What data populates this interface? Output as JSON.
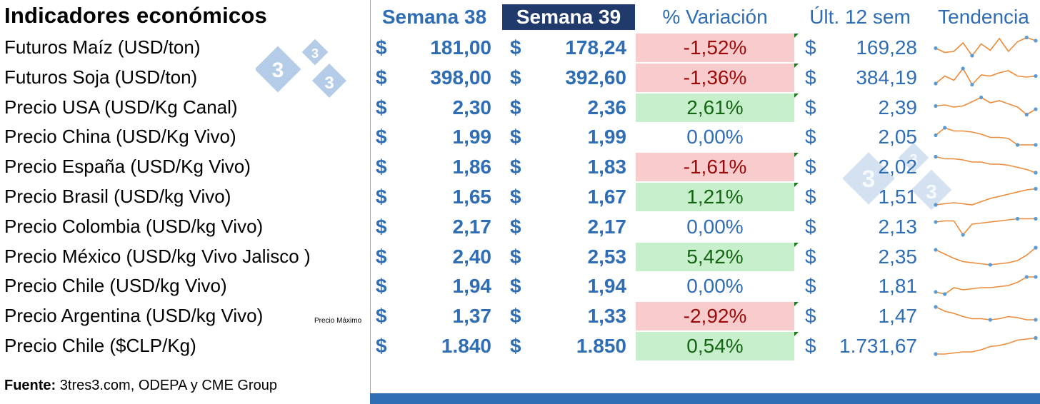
{
  "title": "Indicadores económicos",
  "headers": {
    "semana38": "Semana 38",
    "semana39": "Semana 39",
    "variacion": "% Variación",
    "ultimas12": "Últ. 12 sem",
    "tendencia": "Tendencia"
  },
  "currency_symbol": "$",
  "colors": {
    "blue": "#2f6db5",
    "navy": "#1f3a6b",
    "neg_bg": "#f8cccc",
    "neg_fg": "#9a0a0a",
    "pos_bg": "#c8efcb",
    "pos_fg": "#146614",
    "spark_line": "#ed8b3a",
    "spark_marker": "#5b9bd5"
  },
  "rows": [
    {
      "label": "Futuros Maíz (USD/ton)",
      "s38": "181,00",
      "s39": "178,24",
      "var": "-1,52%",
      "var_sign": "neg",
      "ult12": "169,28",
      "trend": [
        0.45,
        0.25,
        0.3,
        0.7,
        0.1,
        0.65,
        0.35,
        0.9,
        0.3,
        0.75,
        0.95,
        0.8
      ]
    },
    {
      "label": "Futuros Soja (USD/ton)",
      "s38": "398,00",
      "s39": "392,60",
      "var": "-1,36%",
      "var_sign": "neg",
      "ult12": "384,19",
      "trend": [
        0.2,
        0.55,
        0.35,
        0.9,
        0.15,
        0.6,
        0.55,
        0.7,
        0.8,
        0.55,
        0.5,
        0.55
      ]
    },
    {
      "label": "Precio USA (USD/Kg Canal)",
      "s38": "2,30",
      "s39": "2,36",
      "var": "2,61%",
      "var_sign": "pos",
      "ult12": "2,39",
      "trend": [
        0.55,
        0.6,
        0.5,
        0.55,
        0.75,
        0.95,
        0.7,
        0.8,
        0.65,
        0.5,
        0.15,
        0.4
      ]
    },
    {
      "label": "Precio China (USD/Kg Vivo)",
      "s38": "1,99",
      "s39": "1,99",
      "var": "0,00%",
      "var_sign": "zero",
      "ult12": "2,05",
      "trend": [
        0.55,
        0.9,
        0.75,
        0.75,
        0.7,
        0.6,
        0.45,
        0.45,
        0.4,
        0.1,
        0.1,
        0.1
      ]
    },
    {
      "label": "Precio España (USD/Kg Vivo)",
      "s38": "1,86",
      "s39": "1,83",
      "var": "-1,61%",
      "var_sign": "neg",
      "ult12": "2,02",
      "trend": [
        0.95,
        0.85,
        0.85,
        0.8,
        0.7,
        0.7,
        0.6,
        0.6,
        0.55,
        0.45,
        0.35,
        0.2
      ]
    },
    {
      "label": "Precio  Brasil (USD/kg Vivo)",
      "s38": "1,65",
      "s39": "1,67",
      "var": "1,21%",
      "var_sign": "pos",
      "ult12": "1,51",
      "trend": [
        0.1,
        0.15,
        0.2,
        0.15,
        0.1,
        0.25,
        0.4,
        0.5,
        0.6,
        0.7,
        0.8,
        0.85
      ]
    },
    {
      "label": "Precio Colombia (USD/kg Vivo)",
      "s38": "2,17",
      "s39": "2,17",
      "var": "0,00%",
      "var_sign": "zero",
      "ult12": "2,13",
      "trend": [
        0.7,
        0.75,
        0.75,
        0.1,
        0.6,
        0.65,
        0.7,
        0.75,
        0.8,
        0.85,
        0.85,
        0.85
      ]
    },
    {
      "label": "Precio México (USD/kg Vivo Jalisco )",
      "s38": "2,40",
      "s39": "2,53",
      "var": "5,42%",
      "var_sign": "pos",
      "ult12": "2,35",
      "trend": [
        0.8,
        0.6,
        0.4,
        0.25,
        0.2,
        0.15,
        0.1,
        0.15,
        0.2,
        0.3,
        0.55,
        0.9
      ]
    },
    {
      "label": "Precio Chile (USD/kg Vivo)",
      "s38": "1,94",
      "s39": "1,94",
      "var": "0,00%",
      "var_sign": "zero",
      "ult12": "1,81",
      "trend": [
        0.2,
        0.1,
        0.4,
        0.3,
        0.35,
        0.4,
        0.4,
        0.45,
        0.5,
        0.65,
        0.9,
        0.9
      ]
    },
    {
      "label": "Precio Argentina (USD/kg Vivo)",
      "s38": "1,37",
      "s39": "1,33",
      "var": "-2,92%",
      "var_sign": "neg",
      "ult12": "1,47",
      "trend": [
        0.9,
        0.7,
        0.6,
        0.45,
        0.35,
        0.35,
        0.3,
        0.35,
        0.45,
        0.4,
        0.3,
        0.3
      ]
    },
    {
      "label": "Precio Chile ($CLP/Kg)",
      "s38": "1.840",
      "s39": "1.850",
      "var": "0,54%",
      "var_sign": "pos",
      "ult12": "1.731,67",
      "trend": [
        0.1,
        0.1,
        0.15,
        0.2,
        0.2,
        0.3,
        0.45,
        0.5,
        0.6,
        0.75,
        0.8,
        0.85
      ]
    }
  ],
  "note": "Precio Máximo",
  "source_label": "Fuente:",
  "source_text": " 3tres3.com, ODEPA y CME Group",
  "logo_digits": [
    "3",
    "3",
    "3"
  ]
}
